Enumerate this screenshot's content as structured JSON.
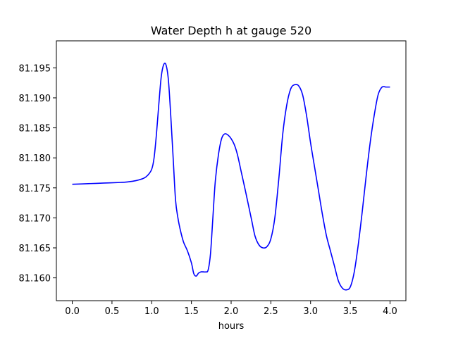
{
  "chart_data": {
    "type": "line",
    "title": "Water Depth h at gauge 520",
    "xlabel": "hours",
    "ylabel": "",
    "xlim": [
      -0.2,
      4.2
    ],
    "ylim": [
      81.1562,
      81.1995
    ],
    "xticks": [
      0.0,
      0.5,
      1.0,
      1.5,
      2.0,
      2.5,
      3.0,
      3.5,
      4.0
    ],
    "xtick_labels": [
      "0.0",
      "0.5",
      "1.0",
      "1.5",
      "2.0",
      "2.5",
      "3.0",
      "3.5",
      "4.0"
    ],
    "yticks": [
      81.16,
      81.165,
      81.17,
      81.175,
      81.18,
      81.185,
      81.19,
      81.195
    ],
    "ytick_labels": [
      "81.160",
      "81.165",
      "81.170",
      "81.175",
      "81.180",
      "81.185",
      "81.190",
      "81.195"
    ],
    "grid": false,
    "series": [
      {
        "name": "",
        "color": "#0000ff",
        "x": [
          0.0,
          0.2,
          0.4,
          0.6,
          0.7,
          0.8,
          0.9,
          0.95,
          1.0,
          1.03,
          1.06,
          1.09,
          1.12,
          1.15,
          1.18,
          1.21,
          1.24,
          1.27,
          1.3,
          1.33,
          1.36,
          1.4,
          1.45,
          1.5,
          1.53,
          1.56,
          1.59,
          1.62,
          1.65,
          1.68,
          1.71,
          1.74,
          1.77,
          1.8,
          1.84,
          1.88,
          1.92,
          1.96,
          2.0,
          2.04,
          2.08,
          2.13,
          2.18,
          2.22,
          2.26,
          2.3,
          2.35,
          2.4,
          2.45,
          2.5,
          2.55,
          2.6,
          2.65,
          2.7,
          2.75,
          2.8,
          2.85,
          2.9,
          2.95,
          3.0,
          3.05,
          3.1,
          3.15,
          3.2,
          3.25,
          3.3,
          3.35,
          3.4,
          3.45,
          3.5,
          3.55,
          3.6,
          3.65,
          3.7,
          3.75,
          3.8,
          3.85,
          3.9,
          3.95,
          4.0
        ],
        "values": [
          81.1756,
          81.1757,
          81.1758,
          81.1759,
          81.176,
          81.1762,
          81.1766,
          81.1771,
          81.1781,
          81.18,
          81.184,
          81.189,
          81.1935,
          81.1955,
          81.1955,
          81.193,
          81.187,
          81.18,
          81.173,
          81.17,
          81.168,
          81.166,
          81.1645,
          81.1625,
          81.1607,
          81.1603,
          81.1608,
          81.161,
          81.161,
          81.161,
          81.1613,
          81.164,
          81.17,
          81.176,
          81.1805,
          81.1832,
          81.184,
          81.1838,
          81.1832,
          81.1822,
          81.1805,
          81.1775,
          81.1745,
          81.172,
          81.1695,
          81.167,
          81.1655,
          81.165,
          81.1652,
          81.1665,
          81.17,
          81.1765,
          81.184,
          81.1888,
          81.1915,
          81.1922,
          81.192,
          81.1905,
          81.187,
          81.1825,
          81.1785,
          81.1745,
          81.1705,
          81.167,
          81.1645,
          81.162,
          81.1595,
          81.1583,
          81.158,
          81.1585,
          81.161,
          81.1655,
          81.171,
          81.177,
          81.1825,
          81.187,
          81.1905,
          81.1918,
          81.1918,
          81.1918
        ]
      }
    ]
  }
}
